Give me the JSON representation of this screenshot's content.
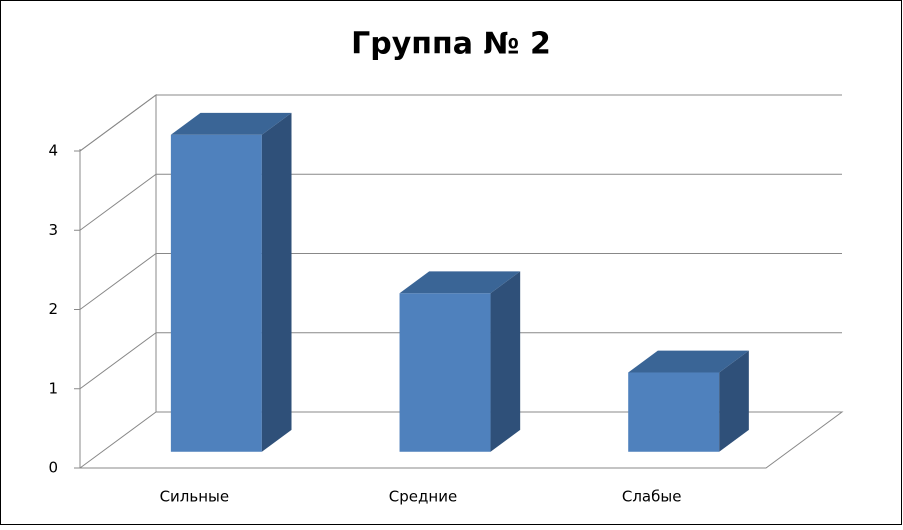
{
  "chart_data": {
    "type": "bar3d",
    "title": "Группа № 2",
    "categories": [
      "Сильные",
      "Средние",
      "Слабые"
    ],
    "values": [
      4,
      2,
      1
    ],
    "color": "#4f81bd",
    "ylim": [
      0,
      4
    ],
    "yticks": [
      0,
      1,
      2,
      3,
      4
    ],
    "grid": true
  }
}
